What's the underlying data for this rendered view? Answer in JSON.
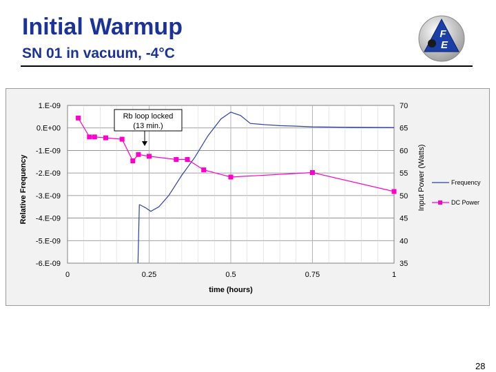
{
  "slide": {
    "title": "Initial Warmup",
    "subtitle": "SN 01 in vacuum, -4°C",
    "page_number": "28",
    "logo_text": "FE",
    "title_color": "#1a3299"
  },
  "chart_data": {
    "type": "line",
    "xlabel": "time (hours)",
    "ylabel": "Relative Frequency",
    "y2label": "Input Power (Watts)",
    "xlim": [
      0,
      1
    ],
    "ylim": [
      -6e-09,
      1e-09
    ],
    "y2lim": [
      35,
      70
    ],
    "x_ticks": [
      0,
      0.25,
      0.5,
      0.75,
      1
    ],
    "x_tick_labels": [
      "0",
      "0.25",
      "0.5",
      "0.75",
      "1"
    ],
    "y_ticks": [
      1e-09,
      0,
      -1e-09,
      -2e-09,
      -3e-09,
      -4e-09,
      -5e-09,
      -6e-09
    ],
    "y_tick_labels": [
      "1.E-09",
      "0.E+00",
      "-1.E-09",
      "-2.E-09",
      "-3.E-09",
      "-4.E-09",
      "-5.E-09",
      "-6.E-09"
    ],
    "y2_ticks": [
      70,
      65,
      60,
      55,
      50,
      45,
      40,
      35
    ],
    "y2_tick_labels": [
      "70",
      "65",
      "60",
      "55",
      "50",
      "45",
      "40",
      "35"
    ],
    "grid": true,
    "legend_position": "right",
    "series": [
      {
        "name": "Frequency",
        "axis": "left",
        "color": "#2b3fa8",
        "x": [
          0.22,
          0.24,
          0.255,
          0.28,
          0.31,
          0.35,
          0.39,
          0.43,
          0.47,
          0.5,
          0.53,
          0.56,
          0.6,
          0.65,
          0.7,
          0.75,
          0.85,
          1.0
        ],
        "y": [
          -3.4e-09,
          -3.55e-09,
          -3.7e-09,
          -3.5e-09,
          -3e-09,
          -2.1e-09,
          -1.3e-09,
          -3.5e-10,
          4e-10,
          7e-10,
          5.5e-10,
          2e-10,
          1.5e-10,
          1e-10,
          8e-11,
          5e-11,
          3e-11,
          2e-11
        ]
      },
      {
        "name": "DC Power",
        "axis": "right",
        "color": "#ff00cc",
        "x": [
          0.033,
          0.067,
          0.083,
          0.117,
          0.167,
          0.2,
          0.217,
          0.25,
          0.333,
          0.367,
          0.417,
          0.5,
          0.75,
          1.0
        ],
        "y": [
          67.2,
          63.0,
          63.0,
          62.8,
          62.5,
          57.7,
          59.1,
          58.7,
          58.0,
          58.0,
          55.7,
          54.1,
          55.1,
          50.9
        ]
      }
    ],
    "annotation": {
      "text_line1": "Rb loop locked",
      "text_line2": "(13 min.)",
      "x": 0.217
    }
  }
}
